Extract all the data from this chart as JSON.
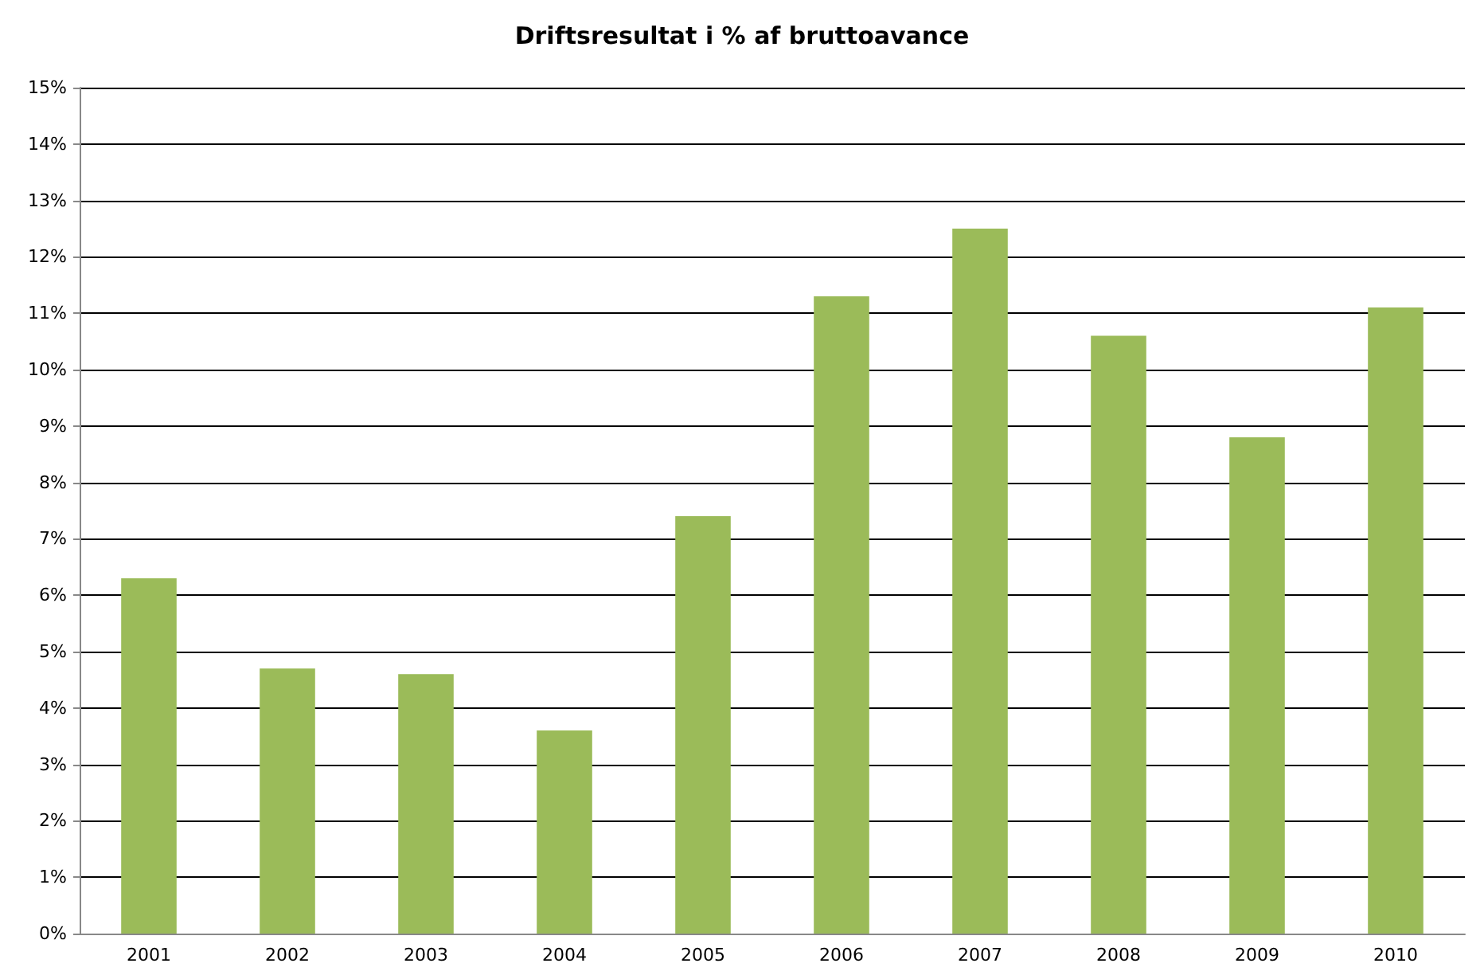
{
  "chart_data": {
    "type": "bar",
    "title": "Driftsresultat i % af bruttoavance",
    "categories": [
      "2001",
      "2002",
      "2003",
      "2004",
      "2005",
      "2006",
      "2007",
      "2008",
      "2009",
      "2010"
    ],
    "values": [
      6.3,
      4.7,
      4.6,
      3.6,
      7.4,
      11.3,
      12.5,
      10.6,
      8.8,
      11.1
    ],
    "color": "#9bbb59",
    "ylim": [
      0,
      15
    ],
    "yticks": [
      {
        "value": 0,
        "label": "0%"
      },
      {
        "value": 1,
        "label": "1%"
      },
      {
        "value": 2,
        "label": "2%"
      },
      {
        "value": 3,
        "label": "3%"
      },
      {
        "value": 4,
        "label": "4%"
      },
      {
        "value": 5,
        "label": "5%"
      },
      {
        "value": 6,
        "label": "6%"
      },
      {
        "value": 7,
        "label": "7%"
      },
      {
        "value": 8,
        "label": "8%"
      },
      {
        "value": 9,
        "label": "9%"
      },
      {
        "value": 10,
        "label": "10%"
      },
      {
        "value": 11,
        "label": "11%"
      },
      {
        "value": 12,
        "label": "12%"
      },
      {
        "value": 13,
        "label": "13%"
      },
      {
        "value": 14,
        "label": "14%"
      },
      {
        "value": 15,
        "label": "15%"
      }
    ],
    "grid": "y"
  }
}
